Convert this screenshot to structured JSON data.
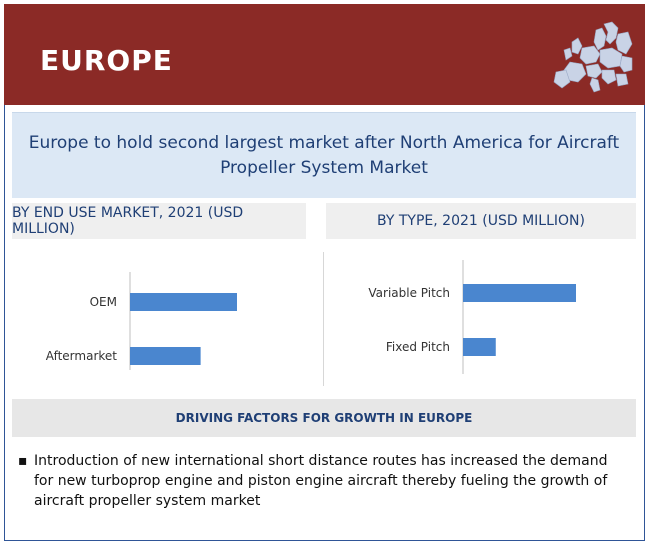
{
  "header": {
    "title": "EUROPE",
    "map_icon": "europe-map-icon",
    "color": "#8b2a26"
  },
  "banner": {
    "text": "Europe to hold second largest market after North America for Aircraft Propeller System Market"
  },
  "panels": {
    "left_title": "BY END USE MARKET, 2021 (USD MILLION)",
    "right_title": "BY TYPE, 2021 (USD MILLION)"
  },
  "chart_data": [
    {
      "type": "bar",
      "orientation": "horizontal",
      "title": "BY END USE MARKET, 2021 (USD MILLION)",
      "categories": [
        "OEM",
        "Aftermarket"
      ],
      "values": [
        100,
        66
      ],
      "bar_color": "#4a86cf",
      "xlim": [
        0,
        100
      ]
    },
    {
      "type": "bar",
      "orientation": "horizontal",
      "title": "BY TYPE, 2021 (USD MILLION)",
      "categories": [
        "Variable Pitch",
        "Fixed Pitch"
      ],
      "values": [
        100,
        29
      ],
      "bar_color": "#4a86cf",
      "xlim": [
        0,
        100
      ]
    }
  ],
  "drivers": {
    "title": "DRIVING FACTORS FOR GROWTH IN EUROPE",
    "items": [
      "Introduction of new international short distance routes has increased the demand for new turboprop engine and piston engine aircraft thereby fueling the growth of aircraft propeller system market"
    ]
  }
}
